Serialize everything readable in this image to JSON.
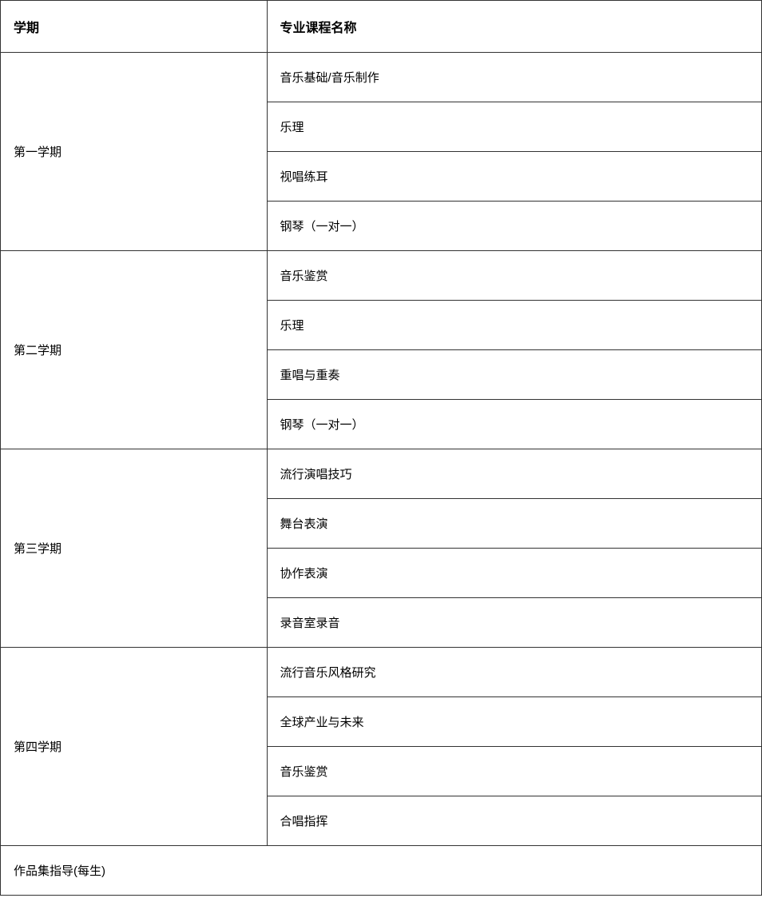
{
  "table": {
    "headers": {
      "semester": "学期",
      "course_name": "专业课程名称"
    },
    "semesters": [
      {
        "name": "第一学期",
        "courses": [
          "音乐基础/音乐制作",
          "乐理",
          "视唱练耳",
          "钢琴（一对一）"
        ]
      },
      {
        "name": "第二学期",
        "courses": [
          "音乐鉴赏",
          "乐理",
          "重唱与重奏",
          "钢琴（一对一）"
        ]
      },
      {
        "name": "第三学期",
        "courses": [
          "流行演唱技巧",
          "舞台表演",
          "协作表演",
          "录音室录音"
        ]
      },
      {
        "name": "第四学期",
        "courses": [
          "流行音乐风格研究",
          "全球产业与未来",
          "音乐鉴赏",
          "合唱指挥"
        ]
      }
    ],
    "footer_row": "作品集指导(每生)",
    "styling": {
      "border_color": "#333333",
      "background_color": "#ffffff",
      "text_color": "#000000",
      "header_font_weight": 700,
      "header_font_size": 16,
      "cell_font_size": 15,
      "cell_padding": "20px 16px",
      "semester_column_width": "35%",
      "course_column_width": "65%"
    }
  }
}
